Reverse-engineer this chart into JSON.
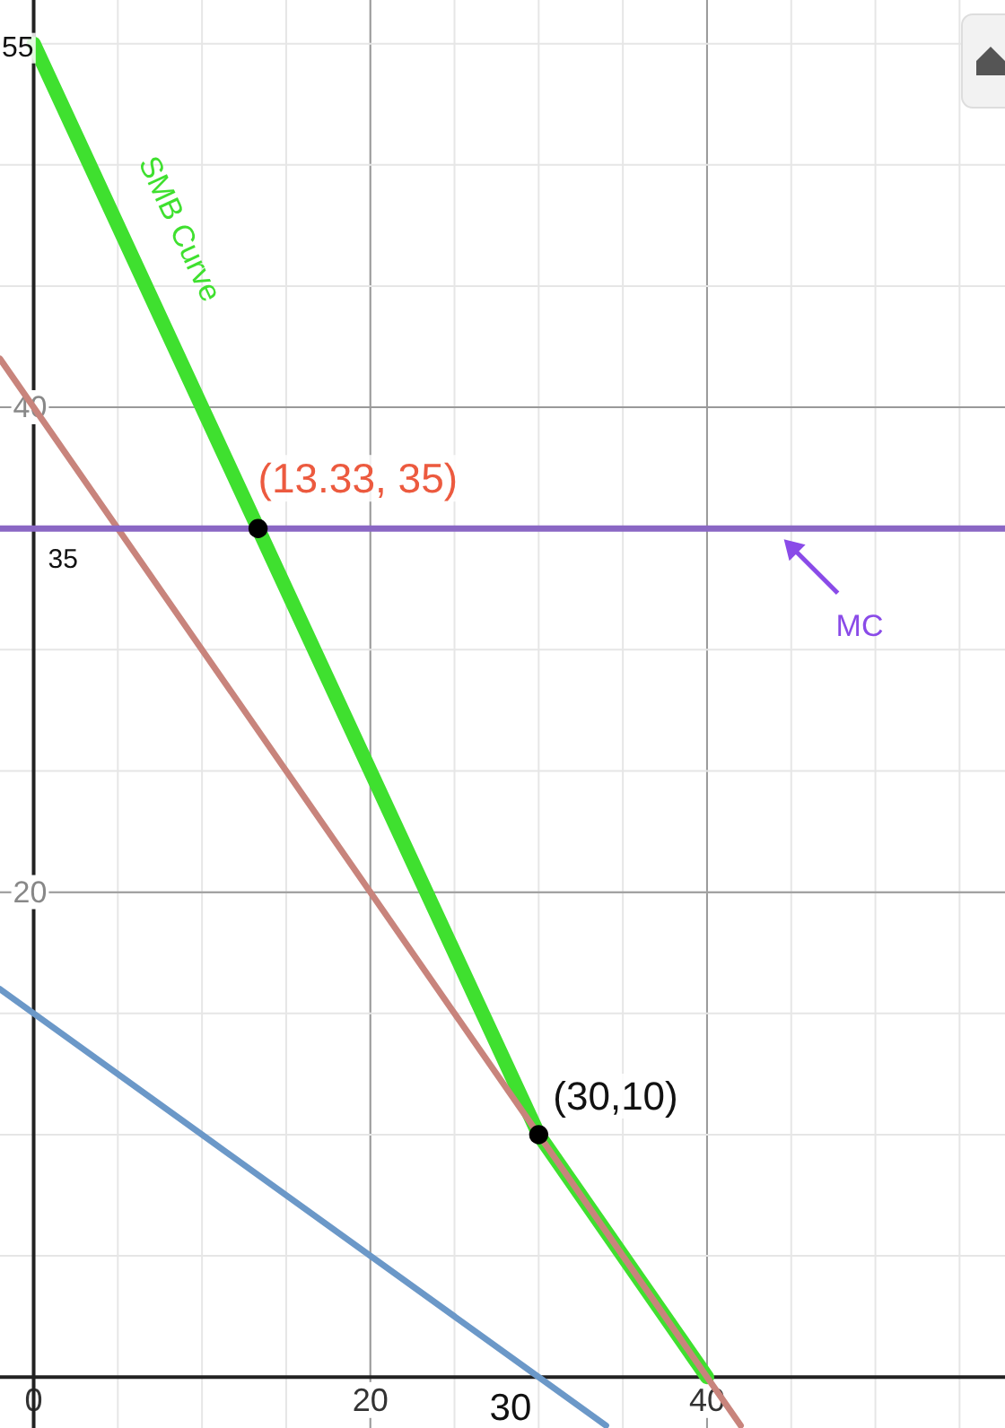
{
  "chart_data": {
    "type": "line",
    "xlim": [
      -2,
      57.7
    ],
    "ylim": [
      -2.1,
      56.8
    ],
    "xticks": [
      0,
      20,
      40
    ],
    "yticks": [
      20,
      40
    ],
    "grid": true,
    "series": [
      {
        "name": "SMB Curve",
        "color": "#3fe02f",
        "x": [
          0,
          30,
          40
        ],
        "values": [
          55,
          10,
          0
        ]
      },
      {
        "color": "#c8847c",
        "x": [
          -2,
          42
        ],
        "values": [
          42,
          -2
        ]
      },
      {
        "color": "#6b98c8",
        "x": [
          -2,
          34
        ],
        "values": [
          16,
          -2
        ]
      },
      {
        "name": "MC",
        "color": "#8a67c4",
        "x": [
          -2,
          57.7
        ],
        "values": [
          35,
          35
        ]
      },
      {
        "type": "scatter",
        "color": "#000000",
        "marker": "circle",
        "x": [
          13.33,
          30
        ],
        "values": [
          35,
          10
        ]
      }
    ],
    "annotations": [
      {
        "text": "(13.33, 35)",
        "x": 13.33,
        "y": 35
      },
      {
        "text": "(30,10)",
        "x": 30,
        "y": 10
      },
      {
        "text": "55",
        "x": 0,
        "y": 55
      },
      {
        "text": "35",
        "x": 0,
        "y": 35
      },
      {
        "text": "30",
        "x": 30,
        "y": 0
      }
    ]
  }
}
